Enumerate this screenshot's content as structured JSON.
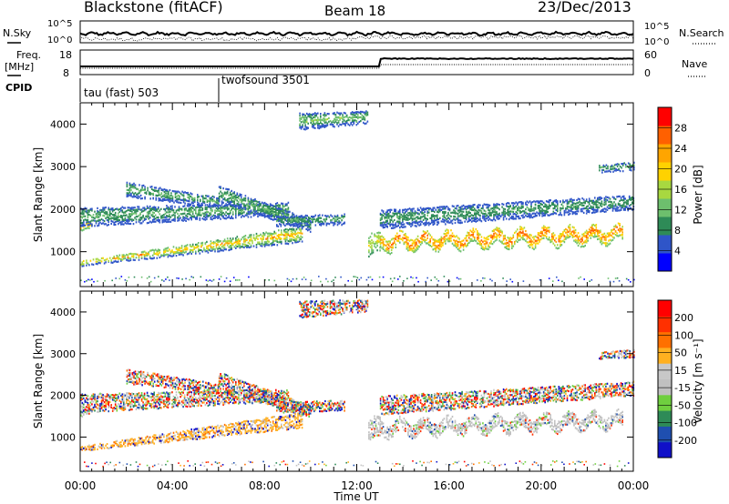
{
  "header": {
    "title": "Blackstone (fitACF)",
    "beam": "Beam 18",
    "date": "23/Dec/2013"
  },
  "top_panels": {
    "nsky_label": "N.Sky",
    "nsearch_label": "N.Search",
    "freq_label_1": "Freq.",
    "freq_label_2": "[MHz]",
    "nave_label": "Nave",
    "cpid_label": "CPID",
    "nsky_left_ticks": [
      "10^5",
      "10^0"
    ],
    "nsky_right_ticks": [
      "10^5",
      "10^0"
    ],
    "freq_left_ticks": [
      "18",
      "8"
    ],
    "nave_right_ticks": [
      "60",
      "0"
    ]
  },
  "cpid": [
    {
      "label": "tau (fast) 503",
      "start_hour": 0
    },
    {
      "label": "twofsound 3501",
      "start_hour": 6
    }
  ],
  "colors": {
    "power": [
      "#0000ff",
      "#2f55c8",
      "#2e8b57",
      "#6dbf6d",
      "#a8d840",
      "#ffd200",
      "#ffa500",
      "#ff6000",
      "#ff0000"
    ],
    "velocity": [
      "#1010c8",
      "#1f4fb0",
      "#2e8b57",
      "#6fcf3f",
      "#c0c0c0",
      "#c8c8c8",
      "#ffb020",
      "#ff7000",
      "#ff3000",
      "#ff0000"
    ]
  },
  "chart_data": [
    {
      "type": "heatmap",
      "name": "power",
      "xlabel": "",
      "ylabel": "Slant Range [km]",
      "colorbar_label": "Power [dB]",
      "colorbar_ticks": [
        "28",
        "24",
        "20",
        "16",
        "12",
        "8",
        "4"
      ],
      "colorbar_range": [
        0,
        32
      ],
      "x_range_hours": [
        0,
        24
      ],
      "ylim": [
        180,
        4500
      ],
      "y_ticks": [
        "4000",
        "3000",
        "2000",
        "1000"
      ],
      "x_ticks": [
        "00:00",
        "04:00",
        "08:00",
        "12:00",
        "16:00",
        "20:00",
        "00:00"
      ]
    },
    {
      "type": "heatmap",
      "name": "velocity",
      "xlabel": "Time UT",
      "ylabel": "Slant Range [km]",
      "colorbar_label": "Velocity [m s⁻¹]",
      "colorbar_ticks": [
        "200",
        "100",
        "50",
        "15",
        "-15",
        "-50",
        "-100",
        "-200"
      ],
      "x_range_hours": [
        0,
        24
      ],
      "ylim": [
        180,
        4500
      ],
      "y_ticks": [
        "4000",
        "3000",
        "2000",
        "1000"
      ],
      "x_ticks": [
        "00:00",
        "04:00",
        "08:00",
        "12:00",
        "16:00",
        "20:00",
        "00:00"
      ]
    }
  ],
  "bands": [
    {
      "h0": 0.0,
      "h1": 9.6,
      "r0": 760,
      "r1": 1450,
      "dr0": 120,
      "dr1": 380,
      "pmin": 6,
      "pmax": 26,
      "vmode": "warm"
    },
    {
      "h0": 0.0,
      "h1": 0.5,
      "r0": 1600,
      "r1": 1700,
      "dr0": 150,
      "dr1": 150,
      "pmin": 14,
      "pmax": 24,
      "vmode": "grey"
    },
    {
      "h0": 0.0,
      "h1": 9.0,
      "r0": 1850,
      "r1": 2050,
      "dr0": 450,
      "dr1": 300,
      "pmin": 4,
      "pmax": 14,
      "vmode": "mixed"
    },
    {
      "h0": 2.0,
      "h1": 6.0,
      "r0": 2500,
      "r1": 2200,
      "dr0": 350,
      "dr1": 250,
      "pmin": 4,
      "pmax": 14,
      "vmode": "mixed"
    },
    {
      "h0": 6.0,
      "h1": 10.0,
      "r0": 2400,
      "r1": 1650,
      "dr0": 400,
      "dr1": 300,
      "pmin": 4,
      "pmax": 14,
      "vmode": "mixed"
    },
    {
      "h0": 8.5,
      "h1": 11.5,
      "r0": 1750,
      "r1": 1800,
      "dr0": 250,
      "dr1": 250,
      "pmin": 4,
      "pmax": 12,
      "vmode": "mixed"
    },
    {
      "h0": 13.0,
      "h1": 23.5,
      "r0": 1250,
      "r1": 1450,
      "dr0": 320,
      "dr1": 320,
      "pmin": 14,
      "pmax": 30,
      "vmode": "grey"
    },
    {
      "h0": 13.0,
      "h1": 24.0,
      "r0": 1800,
      "r1": 2200,
      "dr0": 450,
      "dr1": 350,
      "pmin": 4,
      "pmax": 12,
      "vmode": "mixed"
    },
    {
      "h0": 9.5,
      "h1": 12.5,
      "r0": 4100,
      "r1": 4200,
      "dr0": 400,
      "dr1": 300,
      "pmin": 4,
      "pmax": 16,
      "vmode": "mixed"
    },
    {
      "h0": 22.5,
      "h1": 24.0,
      "r0": 3000,
      "r1": 3050,
      "dr0": 200,
      "dr1": 200,
      "pmin": 4,
      "pmax": 12,
      "vmode": "mixed"
    },
    {
      "h0": 12.5,
      "h1": 13.0,
      "r0": 1200,
      "r1": 1200,
      "dr0": 500,
      "dr1": 500,
      "pmin": 10,
      "pmax": 20,
      "vmode": "grey"
    }
  ]
}
